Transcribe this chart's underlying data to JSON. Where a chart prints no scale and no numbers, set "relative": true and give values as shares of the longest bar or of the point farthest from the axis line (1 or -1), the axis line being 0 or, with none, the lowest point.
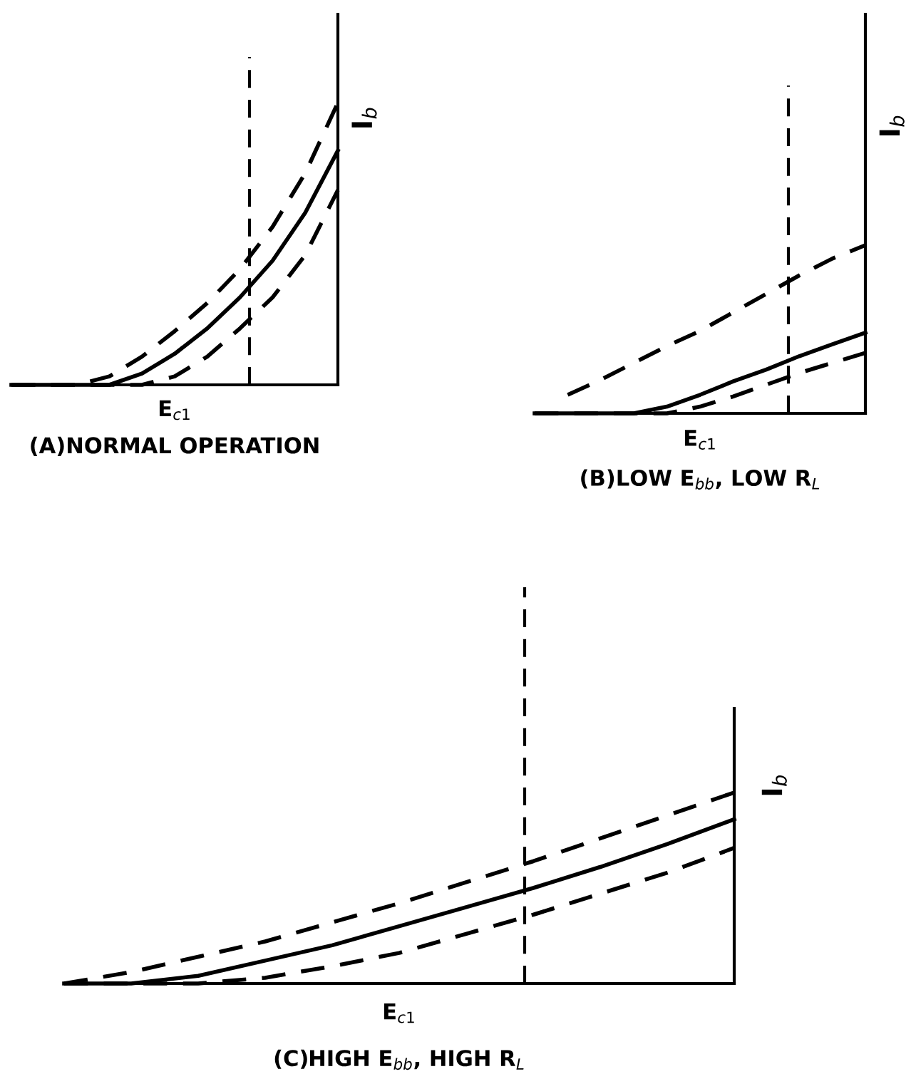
{
  "chart_data": [
    {
      "type": "line",
      "relative": true,
      "title": "(A)NORMAL OPERATION",
      "xlabel": "E$_{c1}$",
      "ylabel": "I$_{b}$",
      "categories": [
        null,
        null,
        null,
        null,
        null,
        null,
        null,
        null,
        null,
        null,
        null
      ],
      "series": [
        {
          "color": "#000000",
          "line_style": "dashed",
          "values": [
            0,
            0,
            0,
            0.03,
            0.1,
            0.19,
            0.29,
            0.41,
            0.56,
            0.75,
            1.0
          ]
        },
        {
          "color": "#000000",
          "line_style": "solid",
          "values": [
            0,
            0,
            0,
            0,
            0.04,
            0.11,
            0.2,
            0.31,
            0.44,
            0.61,
            0.83
          ]
        },
        {
          "color": "#000000",
          "line_style": "dashed",
          "values": [
            0,
            0,
            0,
            0,
            0,
            0.03,
            0.1,
            0.2,
            0.31,
            0.46,
            0.69
          ]
        }
      ]
    },
    {
      "type": "line",
      "relative": true,
      "title": "(B)LOW E$_{bb}$, LOW R$_{L}$",
      "xlabel": "E$_{c1}$",
      "ylabel": "I$_{b}$",
      "categories": [
        null,
        null,
        null,
        null,
        null,
        null,
        null,
        null,
        null,
        null,
        null
      ],
      "series": [
        {
          "color": "#000000",
          "line_style": "dashed",
          "values": [
            null,
            0.11,
            0.2,
            0.3,
            0.4,
            0.49,
            0.6,
            0.71,
            0.82,
            0.92,
            1.0
          ]
        },
        {
          "color": "#000000",
          "line_style": "solid",
          "values": [
            0,
            0,
            0,
            0,
            0.04,
            0.11,
            0.19,
            0.26,
            0.34,
            0.41,
            0.48
          ]
        },
        {
          "color": "#000000",
          "line_style": "dashed",
          "values": [
            0,
            0,
            0,
            0,
            0,
            0.04,
            0.1,
            0.17,
            0.24,
            0.3,
            0.36
          ]
        }
      ]
    },
    {
      "type": "line",
      "relative": true,
      "title": "(C)HIGH E$_{bb}$, HIGH R$_{L}$",
      "xlabel": "E$_{c1}$",
      "ylabel": "I$_{b}$",
      "categories": [
        null,
        null,
        null,
        null,
        null,
        null,
        null,
        null,
        null,
        null,
        null
      ],
      "series": [
        {
          "color": "#000000",
          "line_style": "dashed",
          "values": [
            0,
            0.06,
            0.14,
            0.22,
            0.32,
            0.42,
            0.53,
            0.64,
            0.76,
            0.88,
            1.0
          ]
        },
        {
          "color": "#000000",
          "line_style": "solid",
          "values": [
            0,
            0,
            0.04,
            0.12,
            0.2,
            0.3,
            0.4,
            0.5,
            0.61,
            0.73,
            0.86
          ]
        },
        {
          "color": "#000000",
          "line_style": "dashed",
          "values": [
            0,
            0,
            0,
            0.03,
            0.09,
            0.16,
            0.26,
            0.36,
            0.47,
            0.58,
            0.71
          ]
        }
      ]
    }
  ]
}
